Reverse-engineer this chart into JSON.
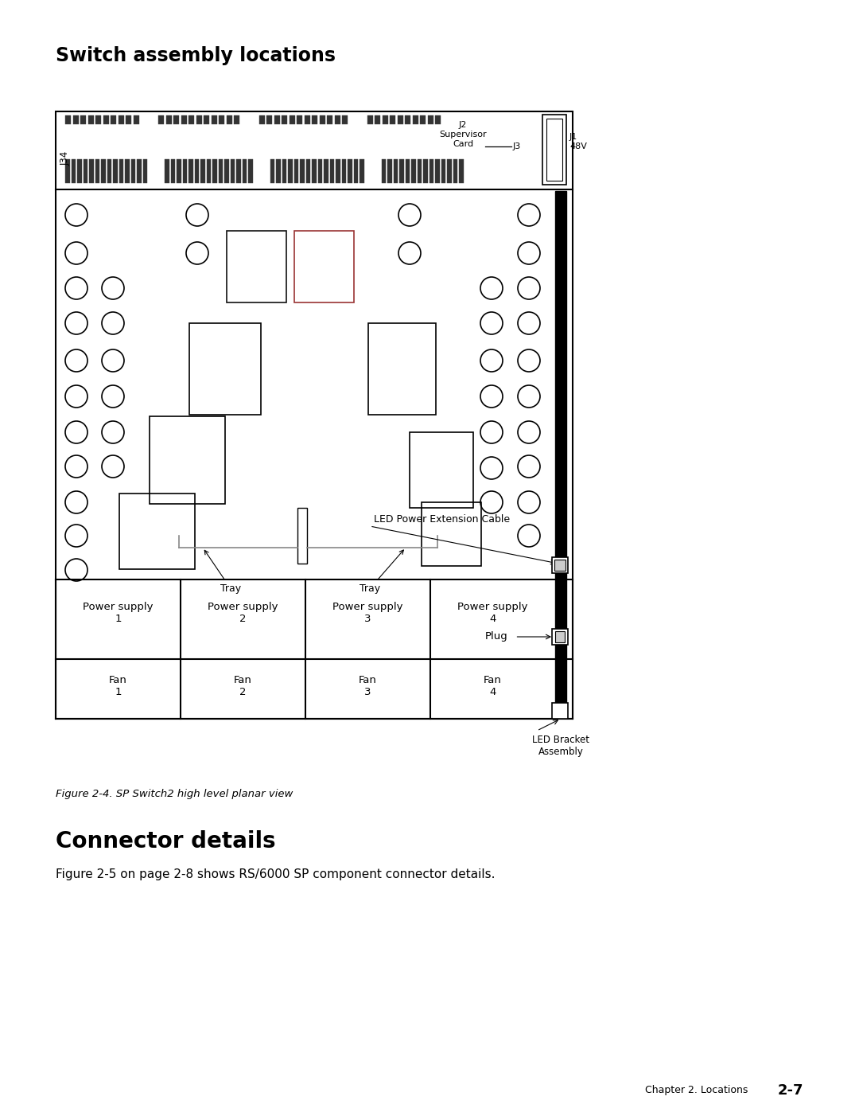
{
  "title": "Switch assembly locations",
  "figure_caption": "Figure 2-4. SP Switch2 high level planar view",
  "section2_title": "Connector details",
  "section2_text": "Figure 2-5 on page 2-8 shows RS/6000 SP component connector details.",
  "footer_text": "Chapter 2. Locations",
  "footer_bold": "2-7",
  "bg_color": "#ffffff",
  "label_j2": "J2",
  "label_supervisor": "Supervisor",
  "label_card": "Card",
  "label_j3": "J3",
  "label_j34": "J34",
  "label_j1_48v": "J1\n48V",
  "label_led_power": "LED Power Extension Cable",
  "label_tray1": "Tray",
  "label_tray2": "Tray",
  "label_led_bracket": "LED Bracket\nAssembly",
  "label_plug": "Plug",
  "power_supply_labels": [
    "Power supply\n1",
    "Power supply\n2",
    "Power supply\n3",
    "Power supply\n4"
  ],
  "fan_labels": [
    "Fan\n1",
    "Fan\n2",
    "Fan\n3",
    "Fan\n4"
  ]
}
